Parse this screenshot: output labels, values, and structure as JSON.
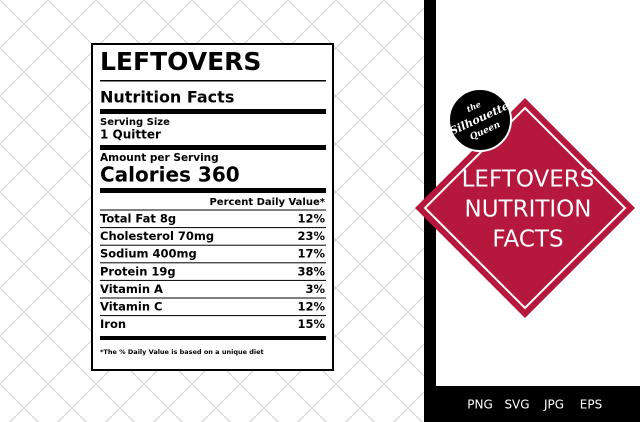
{
  "label": {
    "title": "LEFTOVERS",
    "subtitle": "Nutrition Facts",
    "serving_size_label": "Serving Size",
    "serving_size": "1 Quitter",
    "amount_label": "Amount per Serving",
    "calories": "Calories 360",
    "dv_header": "Percent Daily Value*",
    "rows": [
      [
        "Total Fat 8g",
        "12%"
      ],
      [
        "Cholesterol 70mg",
        "23%"
      ],
      [
        "Sodium 400mg",
        "17%"
      ],
      [
        "Protein 19g",
        "38%"
      ],
      [
        "Vitamin A",
        "3%"
      ],
      [
        "Vitamin C",
        "12%"
      ],
      [
        "Iron",
        "15%"
      ]
    ],
    "footnote": "*The % Daily Value is based on a unique diet"
  },
  "badge": {
    "logo": [
      "the",
      "Silhouette",
      "Queen"
    ],
    "title": [
      "LEFTOVERS",
      "NUTRITION",
      "FACTS"
    ]
  },
  "formats": [
    "PNG",
    "SVG",
    "JPG",
    "EPS"
  ]
}
